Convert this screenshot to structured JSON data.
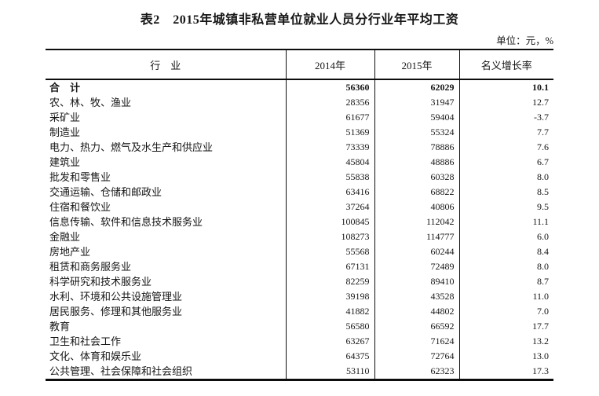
{
  "title": "表2　2015年城镇非私营单位就业人员分行业年平均工资",
  "unit_label": "单位：元，%",
  "table": {
    "headers": [
      "行　业",
      "2014年",
      "2015年",
      "名义增长率"
    ],
    "rows": [
      {
        "industry": "合　计",
        "y2014": "56360",
        "y2015": "62029",
        "growth": "10.1"
      },
      {
        "industry": "农、林、牧、渔业",
        "y2014": "28356",
        "y2015": "31947",
        "growth": "12.7"
      },
      {
        "industry": "采矿业",
        "y2014": "61677",
        "y2015": "59404",
        "growth": "-3.7"
      },
      {
        "industry": "制造业",
        "y2014": "51369",
        "y2015": "55324",
        "growth": "7.7"
      },
      {
        "industry": "电力、热力、燃气及水生产和供应业",
        "y2014": "73339",
        "y2015": "78886",
        "growth": "7.6"
      },
      {
        "industry": "建筑业",
        "y2014": "45804",
        "y2015": "48886",
        "growth": "6.7"
      },
      {
        "industry": "批发和零售业",
        "y2014": "55838",
        "y2015": "60328",
        "growth": "8.0"
      },
      {
        "industry": "交通运输、仓储和邮政业",
        "y2014": "63416",
        "y2015": "68822",
        "growth": "8.5"
      },
      {
        "industry": "住宿和餐饮业",
        "y2014": "37264",
        "y2015": "40806",
        "growth": "9.5"
      },
      {
        "industry": "信息传输、软件和信息技术服务业",
        "y2014": "100845",
        "y2015": "112042",
        "growth": "11.1"
      },
      {
        "industry": "金融业",
        "y2014": "108273",
        "y2015": "114777",
        "growth": "6.0"
      },
      {
        "industry": "房地产业",
        "y2014": "55568",
        "y2015": "60244",
        "growth": "8.4"
      },
      {
        "industry": "租赁和商务服务业",
        "y2014": "67131",
        "y2015": "72489",
        "growth": "8.0"
      },
      {
        "industry": "科学研究和技术服务业",
        "y2014": "82259",
        "y2015": "89410",
        "growth": "8.7"
      },
      {
        "industry": "水利、环境和公共设施管理业",
        "y2014": "39198",
        "y2015": "43528",
        "growth": "11.0"
      },
      {
        "industry": "居民服务、修理和其他服务业",
        "y2014": "41882",
        "y2015": "44802",
        "growth": "7.0"
      },
      {
        "industry": "教育",
        "y2014": "56580",
        "y2015": "66592",
        "growth": "17.7"
      },
      {
        "industry": "卫生和社会工作",
        "y2014": "63267",
        "y2015": "71624",
        "growth": "13.2"
      },
      {
        "industry": "文化、体育和娱乐业",
        "y2014": "64375",
        "y2015": "72764",
        "growth": "13.0"
      },
      {
        "industry": "公共管理、社会保障和社会组织",
        "y2014": "53110",
        "y2015": "62323",
        "growth": "17.3"
      }
    ]
  }
}
